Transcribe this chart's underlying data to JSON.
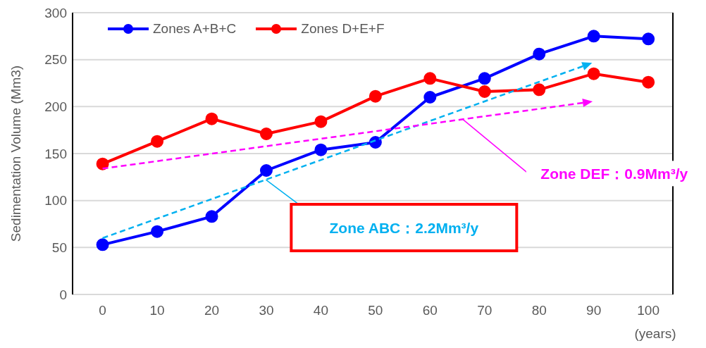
{
  "chart_data": {
    "type": "line",
    "ylabel": "Sedimentation Volume (Mm3)",
    "xlabel": "(years)",
    "x": [
      0,
      10,
      20,
      30,
      40,
      50,
      60,
      70,
      80,
      90,
      100
    ],
    "series": [
      {
        "name": "Zones A+B+C",
        "color": "#0000ff",
        "values": [
          53,
          67,
          83,
          132,
          154,
          162,
          210,
          230,
          256,
          275,
          272
        ]
      },
      {
        "name": "Zones D+E+F",
        "color": "#ff0000",
        "values": [
          139,
          163,
          187,
          171,
          184,
          211,
          230,
          216,
          218,
          235,
          226
        ]
      }
    ],
    "annotations": [
      "Zone ABC：2.2Mm³/y",
      "Zone DEF：0.9Mm³/y"
    ],
    "xlim": [
      -5.5,
      104.5
    ],
    "xticks": [
      0,
      10,
      20,
      30,
      40,
      50,
      60,
      70,
      80,
      90,
      100
    ],
    "ylim": [
      0,
      300
    ],
    "yticks": [
      0,
      50,
      100,
      150,
      200,
      250,
      300
    ],
    "grid": "y",
    "legend": "top left",
    "marker": "circle",
    "line_style": "solid"
  }
}
